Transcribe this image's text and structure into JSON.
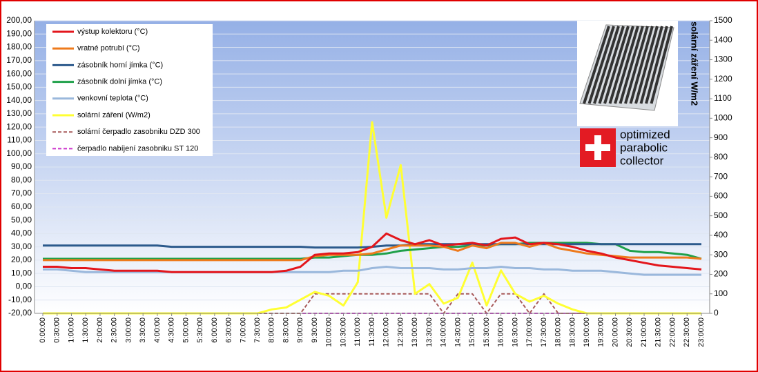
{
  "chart_data": {
    "type": "line",
    "y_axis_title": "solární záření W/m2",
    "categories": [
      "0:00:00",
      "0:30:00",
      "1:00:00",
      "1:30:00",
      "2:00:00",
      "2:30:00",
      "3:00:00",
      "3:30:00",
      "4:00:00",
      "4:30:00",
      "5:00:00",
      "5:30:00",
      "6:00:00",
      "6:30:00",
      "7:00:00",
      "7:30:00",
      "8:00:00",
      "8:30:00",
      "9:00:00",
      "9:30:00",
      "10:00:00",
      "10:30:00",
      "11:00:00",
      "11:30:00",
      "12:00:00",
      "12:30:00",
      "13:00:00",
      "13:30:00",
      "14:00:00",
      "14:30:00",
      "15:00:00",
      "15:30:00",
      "16:00:00",
      "16:30:00",
      "17:00:00",
      "17:30:00",
      "18:00:00",
      "18:30:00",
      "19:00:00",
      "19:30:00",
      "20:00:00",
      "20:30:00",
      "21:00:00",
      "21:30:00",
      "22:00:00",
      "22:30:00",
      "23:00:00"
    ],
    "series": [
      {
        "name": "výstup kolektoru (°C)",
        "color": "#e3161c",
        "values": [
          15,
          15,
          14,
          14,
          13,
          12,
          12,
          12,
          12,
          11,
          11,
          11,
          11,
          11,
          11,
          11,
          11,
          12,
          15,
          24,
          25,
          25,
          26,
          30,
          40,
          35,
          32,
          35,
          31,
          32,
          33,
          31,
          36,
          37,
          32,
          33,
          32,
          30,
          27,
          25,
          22,
          20,
          18,
          16,
          15,
          14,
          13
        ]
      },
      {
        "name": "vratné potrubí (°C)",
        "color": "#ee7a1c",
        "values": [
          20,
          20,
          20,
          20,
          20,
          20,
          20,
          20,
          20,
          20,
          20,
          20,
          20,
          20,
          20,
          20,
          20,
          20,
          20,
          23,
          24,
          24,
          24,
          25,
          28,
          31,
          31,
          31,
          30,
          27,
          31,
          29,
          33,
          33,
          30,
          33,
          29,
          27,
          25,
          24,
          23,
          22,
          22,
          22,
          22,
          22,
          21
        ]
      },
      {
        "name": "zásobník horní jímka (°C)",
        "color": "#2c5a8c",
        "values": [
          31,
          31,
          31,
          31,
          31,
          31,
          31,
          31,
          31,
          30,
          30,
          30,
          30,
          30,
          30,
          30,
          30,
          30,
          30,
          29.5,
          29.5,
          29.5,
          29.5,
          30,
          31,
          31,
          32,
          32,
          32,
          32,
          32,
          32,
          32,
          32,
          32,
          32,
          32,
          32,
          32,
          32,
          32,
          32,
          32,
          32,
          32,
          32,
          32
        ]
      },
      {
        "name": "zásobník dolní jímka  (°C)",
        "color": "#1fa04a",
        "values": [
          21,
          21,
          21,
          21,
          21,
          21,
          21,
          21,
          21,
          21,
          21,
          21,
          21,
          21,
          21,
          21,
          21,
          21,
          21,
          22,
          22,
          23,
          24,
          24,
          25,
          27,
          28,
          29,
          30,
          30,
          31,
          31,
          32,
          32,
          33,
          33,
          33,
          33,
          33,
          32,
          32,
          27,
          26,
          26,
          25,
          24,
          21
        ]
      },
      {
        "name": "venkovní teplota (°C)",
        "color": "#9ab8dc",
        "values": [
          13,
          13,
          12,
          11,
          11,
          11,
          11,
          11,
          11,
          11,
          11,
          11,
          11,
          11,
          11,
          11,
          11,
          11,
          11,
          11,
          11,
          12,
          12,
          14,
          15,
          14,
          14,
          14,
          13,
          13,
          14,
          14,
          15,
          14,
          14,
          13,
          13,
          12,
          12,
          12,
          11,
          10,
          9,
          9,
          9,
          9,
          9
        ]
      },
      {
        "name": "solární záření (W/m2)",
        "color": "#ffff33",
        "axis": "y2",
        "values": [
          0,
          0,
          0,
          0,
          0,
          0,
          0,
          0,
          0,
          0,
          0,
          0,
          0,
          0,
          0,
          0,
          20,
          30,
          70,
          110,
          90,
          40,
          160,
          980,
          490,
          760,
          100,
          150,
          50,
          80,
          260,
          40,
          220,
          100,
          60,
          90,
          50,
          20,
          0,
          0,
          0,
          0,
          0,
          0,
          0,
          0,
          0
        ]
      },
      {
        "name": "solární čerpadlo zasobniku  DZD 300",
        "color": "#a85a5a",
        "axis": "y2",
        "dash": true,
        "values": [
          0,
          0,
          0,
          0,
          0,
          0,
          0,
          0,
          0,
          0,
          0,
          0,
          0,
          0,
          0,
          0,
          0,
          0,
          0,
          100,
          100,
          100,
          100,
          100,
          100,
          100,
          100,
          100,
          0,
          100,
          100,
          0,
          100,
          100,
          0,
          100,
          0,
          0,
          0,
          0,
          0,
          0,
          0,
          0,
          0,
          0,
          0
        ]
      },
      {
        "name": "čerpadlo nabíjení  zasobniku ST 120",
        "color": "#cc33cc",
        "axis": "y2",
        "dash": true,
        "values": [
          0,
          0,
          0,
          0,
          0,
          0,
          0,
          0,
          0,
          0,
          0,
          0,
          0,
          0,
          0,
          0,
          0,
          0,
          0,
          0,
          0,
          0,
          0,
          0,
          0,
          0,
          0,
          0,
          0,
          0,
          0,
          0,
          0,
          0,
          0,
          0,
          0,
          0,
          0,
          0,
          0,
          0,
          0,
          0,
          0,
          0,
          0
        ]
      }
    ],
    "ylim": [
      -20,
      200
    ],
    "yticks": [
      {
        "value": -20,
        "label": "-20,00"
      },
      {
        "value": -10,
        "label": "-10,00"
      },
      {
        "value": 0,
        "label": "0,00"
      },
      {
        "value": 10,
        "label": "10,00"
      },
      {
        "value": 20,
        "label": "20,00"
      },
      {
        "value": 30,
        "label": "30,00"
      },
      {
        "value": 40,
        "label": "40,00"
      },
      {
        "value": 50,
        "label": "50,00"
      },
      {
        "value": 60,
        "label": "60,00"
      },
      {
        "value": 70,
        "label": "70,00"
      },
      {
        "value": 80,
        "label": "80,00"
      },
      {
        "value": 90,
        "label": "90,00"
      },
      {
        "value": 100,
        "label": "100,00"
      },
      {
        "value": 110,
        "label": "110,00"
      },
      {
        "value": 120,
        "label": "120,00"
      },
      {
        "value": 130,
        "label": "130,00"
      },
      {
        "value": 140,
        "label": "140,00"
      },
      {
        "value": 150,
        "label": "150,00"
      },
      {
        "value": 160,
        "label": "160,00"
      },
      {
        "value": 170,
        "label": "170,00"
      },
      {
        "value": 180,
        "label": "180,00"
      },
      {
        "value": 190,
        "label": "190,00"
      },
      {
        "value": 200,
        "label": "200,00"
      }
    ],
    "y2lim": [
      0,
      1500
    ],
    "y2ticks": [
      0,
      100,
      200,
      300,
      400,
      500,
      600,
      700,
      800,
      900,
      1000,
      1100,
      1200,
      1300,
      1400,
      1500
    ],
    "grid": true,
    "legend": "upper left"
  },
  "logo": {
    "lines": [
      "optimized",
      "parabolic",
      "collector"
    ]
  }
}
